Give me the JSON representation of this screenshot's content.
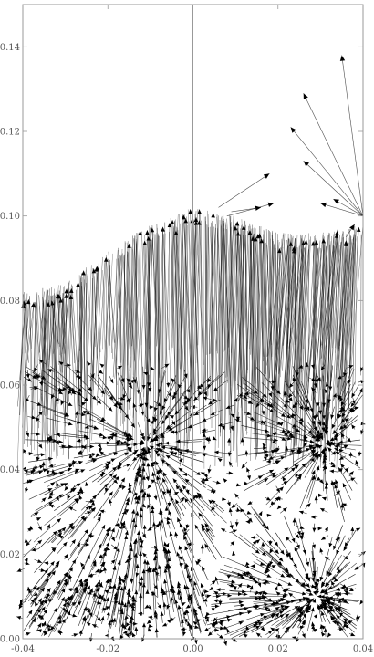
{
  "chart_data": {
    "type": "vector-field",
    "title": "",
    "xlabel": "",
    "ylabel": "",
    "xlim": [
      -0.04,
      0.04
    ],
    "ylim": [
      0.0,
      0.15
    ],
    "x_ticks": [
      {
        "value": -0.04,
        "label": "-0.04"
      },
      {
        "value": -0.02,
        "label": "-0.02"
      },
      {
        "value": 0.0,
        "label": "0.00"
      },
      {
        "value": 0.02,
        "label": "0.02"
      },
      {
        "value": 0.04,
        "label": "0.04"
      }
    ],
    "y_ticks": [
      {
        "value": 0.0,
        "label": "0.00"
      },
      {
        "value": 0.02,
        "label": "0.02"
      },
      {
        "value": 0.04,
        "label": "0.04"
      },
      {
        "value": 0.06,
        "label": "0.06"
      },
      {
        "value": 0.08,
        "label": "0.08"
      },
      {
        "value": 0.1,
        "label": "0.10"
      },
      {
        "value": 0.12,
        "label": "0.12"
      },
      {
        "value": 0.14,
        "label": "0.14"
      }
    ],
    "grid": false,
    "axis_line_at_x": 0.0,
    "foreground_color": "#000000",
    "axis_color": "#999999",
    "dense_region_top": 0.065,
    "upper_envelope": [
      {
        "x": -0.04,
        "y": 0.082
      },
      {
        "x": -0.03,
        "y": 0.084
      },
      {
        "x": -0.02,
        "y": 0.092
      },
      {
        "x": -0.01,
        "y": 0.098
      },
      {
        "x": 0.0,
        "y": 0.102
      },
      {
        "x": 0.01,
        "y": 0.1
      },
      {
        "x": 0.02,
        "y": 0.096
      },
      {
        "x": 0.03,
        "y": 0.096
      },
      {
        "x": 0.04,
        "y": 0.098
      }
    ],
    "sinks": [
      {
        "x": -0.011,
        "y": 0.046
      },
      {
        "x": 0.029,
        "y": 0.01
      },
      {
        "x": 0.031,
        "y": 0.046
      }
    ],
    "outlier_vectors": [
      {
        "x0": 0.04,
        "y0": 0.1,
        "x1": 0.035,
        "y1": 0.138
      },
      {
        "x0": 0.04,
        "y0": 0.1,
        "x1": 0.026,
        "y1": 0.129
      },
      {
        "x0": 0.04,
        "y0": 0.1,
        "x1": 0.023,
        "y1": 0.121
      },
      {
        "x0": 0.04,
        "y0": 0.1,
        "x1": 0.026,
        "y1": 0.113
      },
      {
        "x0": 0.04,
        "y0": 0.1,
        "x1": 0.03,
        "y1": 0.103
      },
      {
        "x0": 0.04,
        "y0": 0.1,
        "x1": 0.033,
        "y1": 0.104
      },
      {
        "x0": 0.006,
        "y0": 0.102,
        "x1": 0.018,
        "y1": 0.11
      },
      {
        "x0": 0.008,
        "y0": 0.1,
        "x1": 0.019,
        "y1": 0.103
      },
      {
        "x0": 0.009,
        "y0": 0.101,
        "x1": 0.016,
        "y1": 0.102
      },
      {
        "x0": 0.036,
        "y0": 0.095,
        "x1": 0.038,
        "y1": 0.098
      }
    ]
  }
}
